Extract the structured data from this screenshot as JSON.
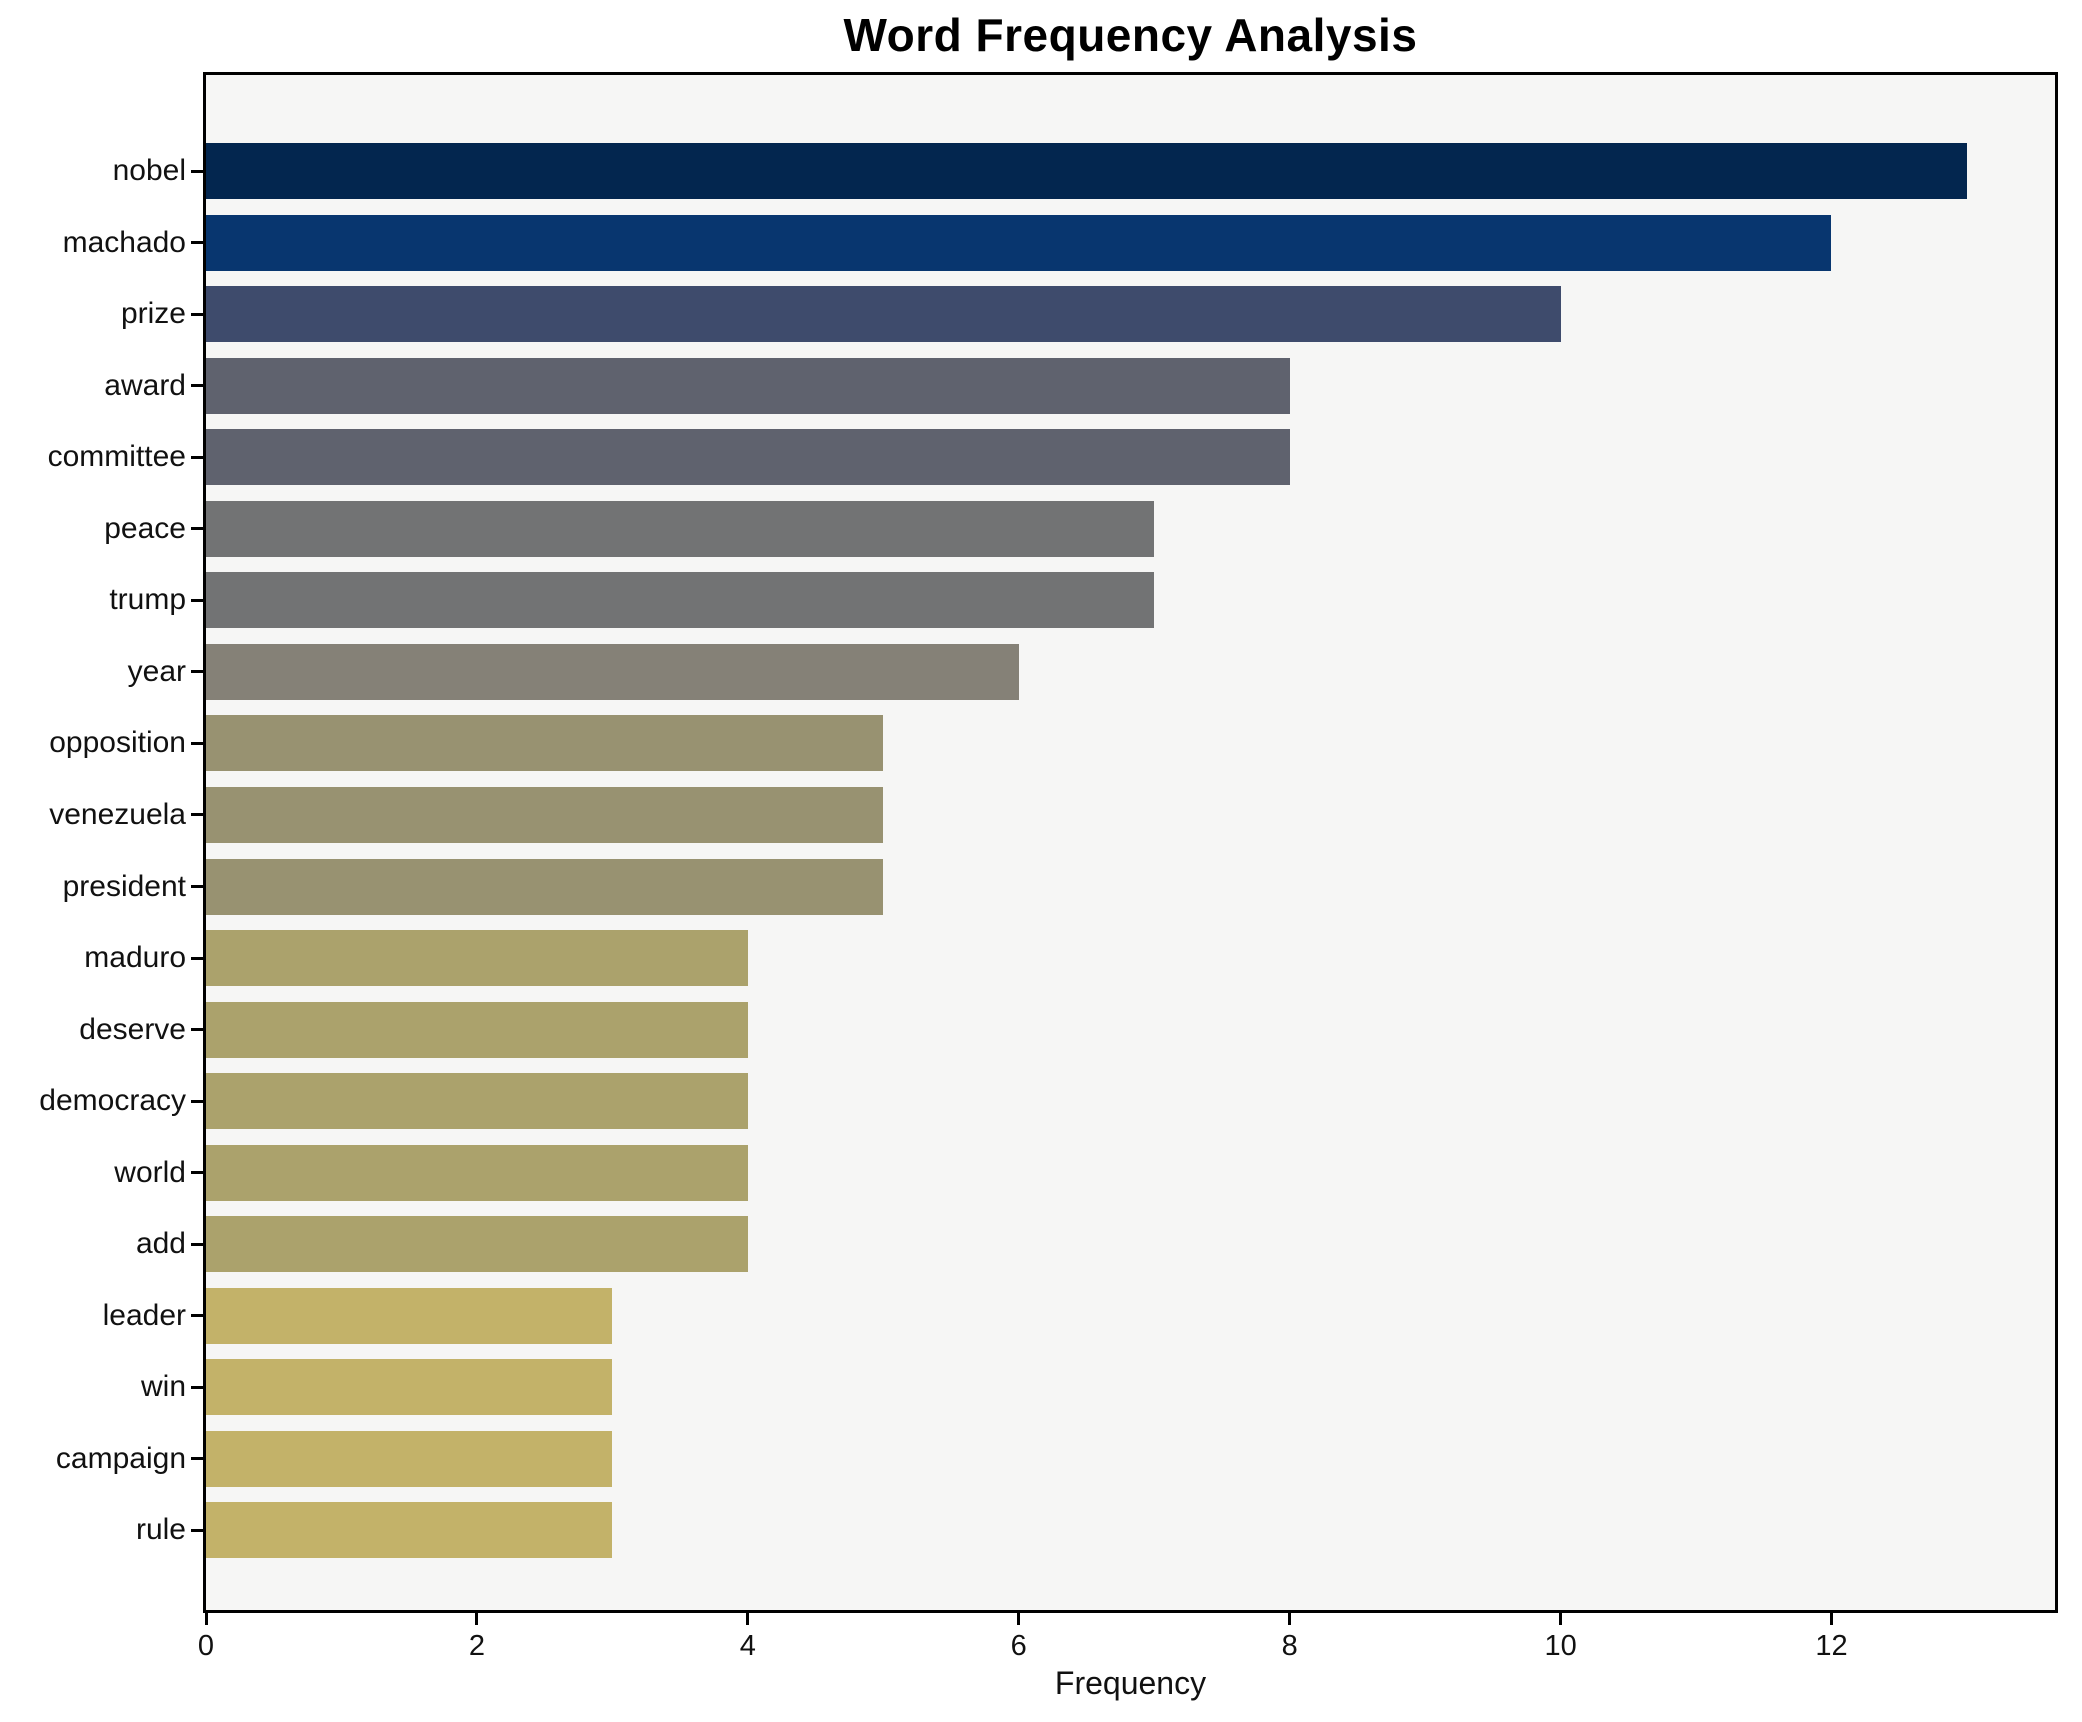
{
  "chart_data": {
    "type": "bar",
    "orientation": "horizontal",
    "title": "Word Frequency Analysis",
    "xlabel": "Frequency",
    "ylabel": "",
    "grid": false,
    "legend": null,
    "xlim": [
      0,
      13.65
    ],
    "xticks": [
      0,
      2,
      4,
      6,
      8,
      10,
      12
    ],
    "categories": [
      "nobel",
      "machado",
      "prize",
      "award",
      "committee",
      "peace",
      "trump",
      "year",
      "opposition",
      "venezuela",
      "president",
      "maduro",
      "deserve",
      "democracy",
      "world",
      "add",
      "leader",
      "win",
      "campaign",
      "rule"
    ],
    "values": [
      13,
      12,
      10,
      8,
      8,
      7,
      7,
      6,
      5,
      5,
      5,
      4,
      4,
      4,
      4,
      4,
      3,
      3,
      3,
      3
    ],
    "bar_colors": [
      "#03264f",
      "#08366f",
      "#3e4b6c",
      "#5f626e",
      "#5f626e",
      "#727374",
      "#727374",
      "#858177",
      "#989271",
      "#989271",
      "#989271",
      "#aba26c",
      "#aba26c",
      "#aba26c",
      "#aba26c",
      "#aba26c",
      "#c3b269",
      "#c3b269",
      "#c3b269",
      "#c3b269"
    ],
    "colors": {
      "plot_background": "#f6f6f5",
      "figure_background": "#ffffff",
      "spine": "#000000",
      "text": "#111111"
    }
  }
}
